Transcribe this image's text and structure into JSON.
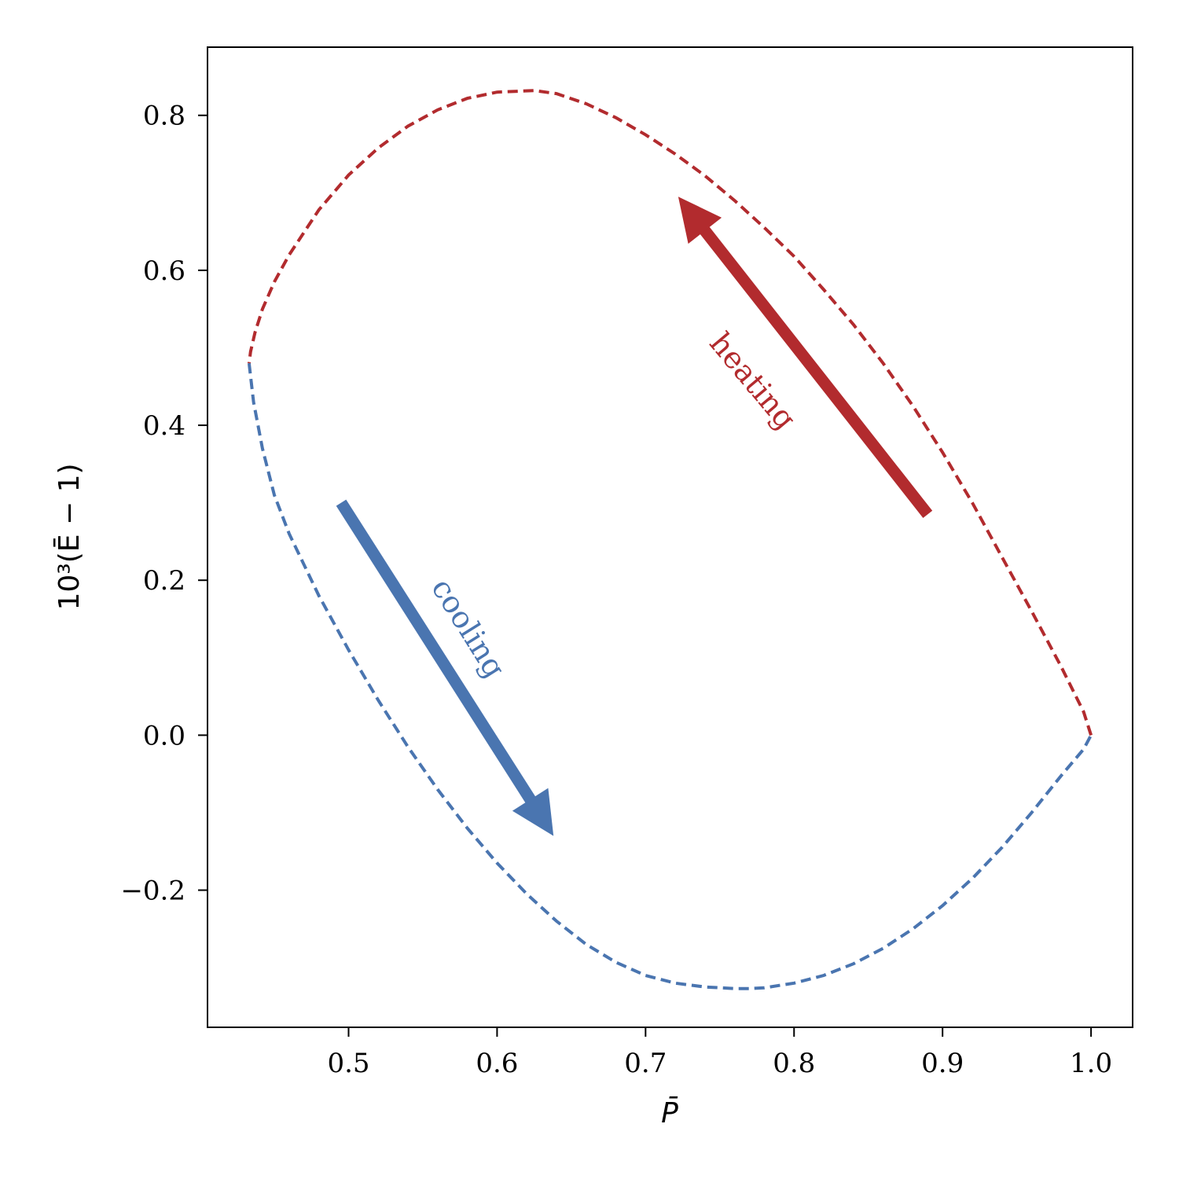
{
  "chart_data": {
    "type": "line",
    "title": "",
    "xlabel": "P̄",
    "ylabel": "10³(Ē − 1)",
    "xlim": [
      0.405,
      1.028
    ],
    "ylim": [
      -0.377,
      0.888
    ],
    "xticks": [
      0.5,
      0.6,
      0.7,
      0.8,
      0.9,
      1.0
    ],
    "xtick_labels": [
      "0.5",
      "0.6",
      "0.7",
      "0.8",
      "0.9",
      "1.0"
    ],
    "yticks": [
      -0.2,
      0.0,
      0.2,
      0.4,
      0.6,
      0.8
    ],
    "ytick_labels": [
      "−0.2",
      "0.0",
      "0.2",
      "0.4",
      "0.6",
      "0.8"
    ],
    "grid": false,
    "series": [
      {
        "color": "#b22b2e",
        "style": "dashed",
        "x": [
          1.0,
          0.995,
          0.98,
          0.96,
          0.94,
          0.92,
          0.9,
          0.88,
          0.86,
          0.84,
          0.82,
          0.8,
          0.78,
          0.76,
          0.74,
          0.72,
          0.7,
          0.68,
          0.66,
          0.64,
          0.625,
          0.6,
          0.58,
          0.56,
          0.54,
          0.52,
          0.5,
          0.48,
          0.46,
          0.45,
          0.442,
          0.437,
          0.434,
          0.433
        ],
        "y": [
          0.0,
          0.03,
          0.088,
          0.16,
          0.23,
          0.3,
          0.365,
          0.425,
          0.48,
          0.53,
          0.575,
          0.618,
          0.655,
          0.69,
          0.722,
          0.75,
          0.775,
          0.797,
          0.815,
          0.828,
          0.832,
          0.83,
          0.822,
          0.807,
          0.786,
          0.758,
          0.723,
          0.678,
          0.62,
          0.585,
          0.55,
          0.52,
          0.495,
          0.48
        ]
      },
      {
        "color": "#4a75b0",
        "style": "dashed",
        "x": [
          0.433,
          0.436,
          0.442,
          0.45,
          0.46,
          0.48,
          0.5,
          0.52,
          0.54,
          0.56,
          0.58,
          0.6,
          0.62,
          0.64,
          0.66,
          0.68,
          0.7,
          0.72,
          0.74,
          0.76,
          0.77,
          0.78,
          0.8,
          0.82,
          0.84,
          0.86,
          0.88,
          0.9,
          0.92,
          0.94,
          0.96,
          0.98,
          0.995,
          1.0
        ],
        "y": [
          0.48,
          0.43,
          0.37,
          0.31,
          0.26,
          0.18,
          0.11,
          0.045,
          -0.015,
          -0.07,
          -0.12,
          -0.165,
          -0.205,
          -0.24,
          -0.27,
          -0.293,
          -0.31,
          -0.32,
          -0.325,
          -0.327,
          -0.327,
          -0.326,
          -0.32,
          -0.31,
          -0.295,
          -0.275,
          -0.25,
          -0.22,
          -0.185,
          -0.145,
          -0.1,
          -0.052,
          -0.018,
          0.0
        ]
      }
    ],
    "annotations": [
      {
        "text": "heating",
        "color": "#b22b2e",
        "arrow_from": [
          0.89,
          0.285
        ],
        "arrow_to": [
          0.722,
          0.695
        ]
      },
      {
        "text": "cooling",
        "color": "#4a75b0",
        "arrow_from": [
          0.495,
          0.3
        ],
        "arrow_to": [
          0.638,
          -0.13
        ]
      }
    ]
  }
}
